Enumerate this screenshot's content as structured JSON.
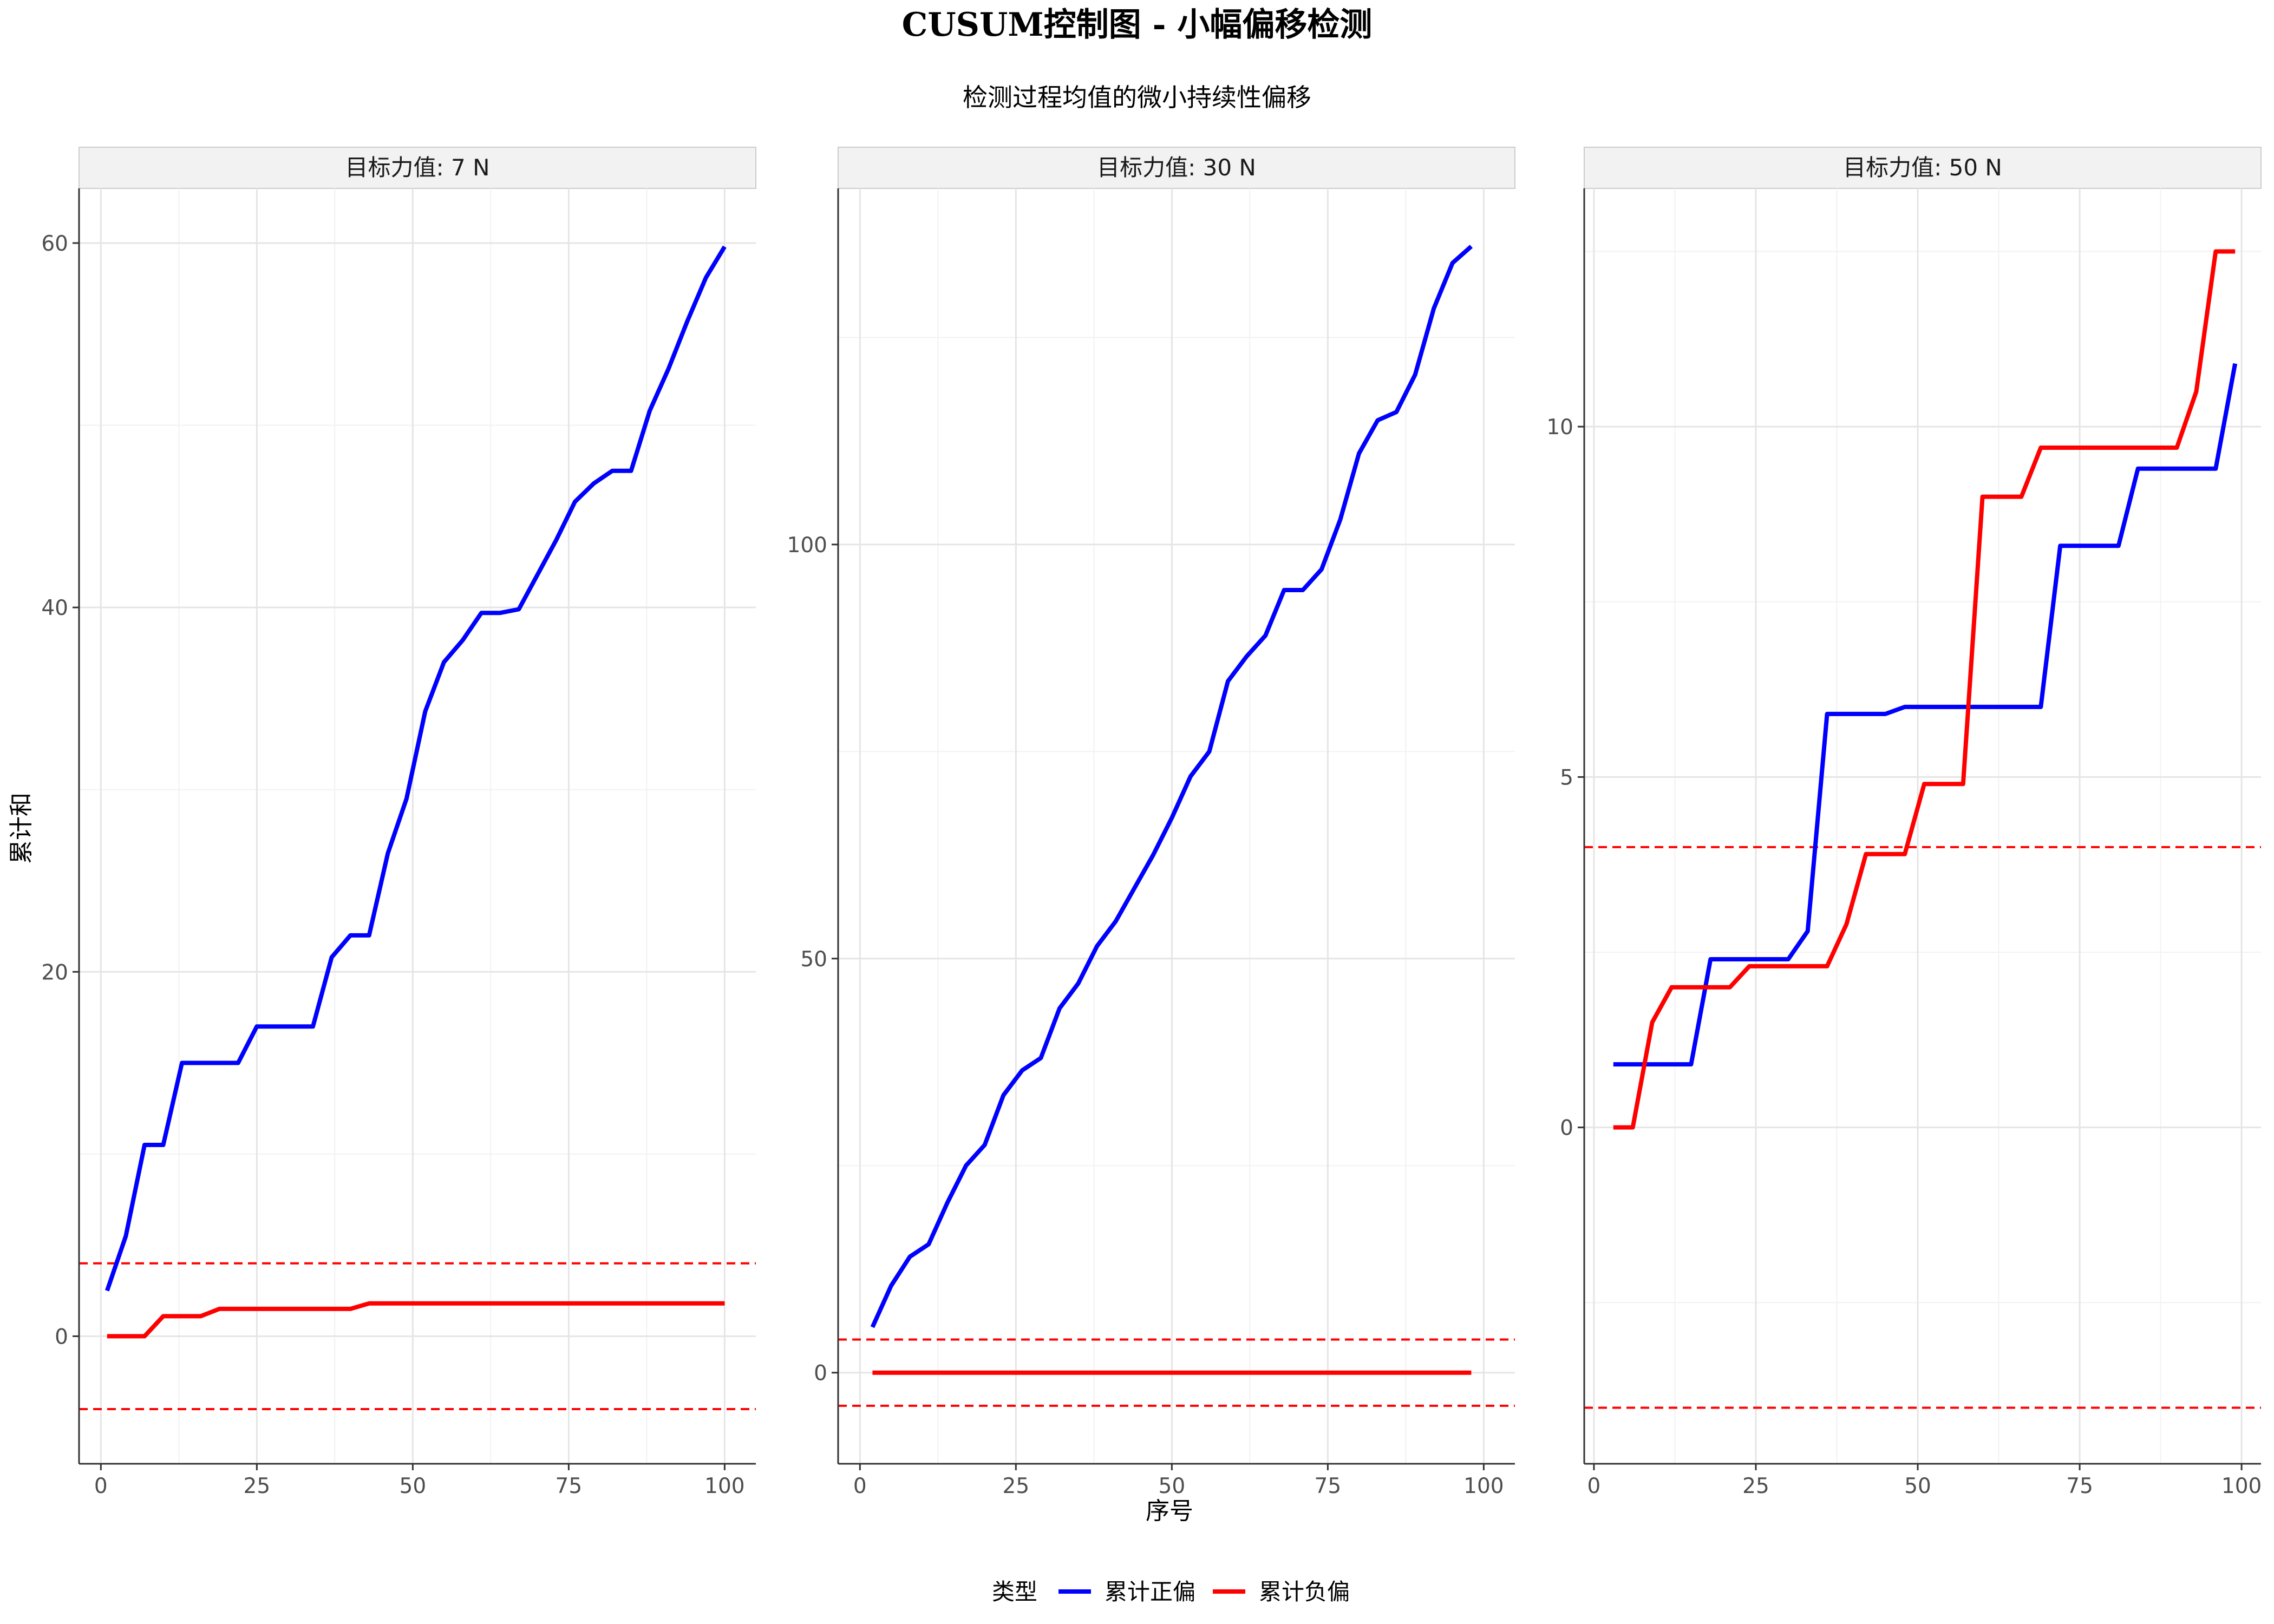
{
  "title": "CUSUM控制图 - 小幅偏移检测",
  "subtitle": "检测过程均值的微小持续性偏移",
  "xlabel": "序号",
  "ylabel": "累计和",
  "legend": {
    "title": "类型",
    "items": [
      {
        "label": "累计正偏",
        "color": "#0000ff"
      },
      {
        "label": "累计负偏",
        "color": "#ff0000"
      }
    ]
  },
  "colors": {
    "positive": "#0000ff",
    "negative": "#ff0000",
    "limit": "#ff0000"
  },
  "chart_data": [
    {
      "type": "line",
      "facet_label": "目标力值: 7 N",
      "xlim": [
        -3.5,
        105
      ],
      "ylim": [
        -7,
        63
      ],
      "xticks": [
        0,
        25,
        50,
        75,
        100
      ],
      "yticks": [
        0,
        20,
        40,
        60
      ],
      "decision_limits": [
        4,
        -4
      ],
      "series": [
        {
          "name": "累计正偏",
          "x": [
            1,
            4,
            7,
            10,
            13,
            16,
            19,
            22,
            25,
            28,
            31,
            34,
            37,
            40,
            43,
            46,
            49,
            52,
            55,
            58,
            61,
            64,
            67,
            70,
            73,
            76,
            79,
            82,
            85,
            88,
            91,
            94,
            97,
            100
          ],
          "y": [
            2.5,
            5.5,
            10.5,
            10.5,
            15,
            15,
            15,
            15,
            17,
            17,
            17,
            17,
            20.8,
            22,
            22,
            26.5,
            29.5,
            34.3,
            37,
            38.2,
            39.7,
            39.7,
            39.9,
            41.8,
            43.7,
            45.8,
            46.8,
            47.5,
            47.5,
            50.8,
            53.1,
            55.7,
            58.1,
            59.8
          ]
        },
        {
          "name": "累计负偏",
          "x": [
            1,
            4,
            7,
            10,
            13,
            16,
            19,
            22,
            25,
            28,
            31,
            34,
            37,
            40,
            43,
            46,
            49,
            100
          ],
          "y": [
            0,
            0,
            0,
            1.1,
            1.1,
            1.1,
            1.5,
            1.5,
            1.5,
            1.5,
            1.5,
            1.5,
            1.5,
            1.5,
            1.8,
            1.8,
            1.8,
            1.8
          ]
        }
      ]
    },
    {
      "type": "line",
      "facet_label": "目标力值: 30 N",
      "xlim": [
        -3.5,
        105
      ],
      "ylim": [
        -11,
        143
      ],
      "xticks": [
        0,
        25,
        50,
        75,
        100
      ],
      "yticks": [
        0,
        50,
        100
      ],
      "decision_limits": [
        4,
        -4
      ],
      "series": [
        {
          "name": "累计正偏",
          "x": [
            2,
            5,
            8,
            11,
            14,
            17,
            20,
            23,
            26,
            29,
            32,
            35,
            38,
            41,
            44,
            47,
            50,
            53,
            56,
            59,
            62,
            65,
            68,
            71,
            74,
            77,
            80,
            83,
            86,
            89,
            92,
            95,
            98
          ],
          "y": [
            5.5,
            10.5,
            14,
            15.5,
            20.5,
            25,
            27.5,
            33.5,
            36.5,
            38,
            44,
            47,
            51.5,
            54.5,
            58.5,
            62.5,
            67,
            72,
            75,
            83.5,
            86.5,
            89,
            94.5,
            94.5,
            97,
            103,
            111,
            115,
            116,
            120.5,
            128.5,
            134,
            136
          ]
        },
        {
          "name": "累计负偏",
          "x": [
            2,
            98
          ],
          "y": [
            0,
            0
          ]
        }
      ]
    },
    {
      "type": "line",
      "facet_label": "目标力值: 50 N",
      "xlim": [
        -1.5,
        103
      ],
      "ylim": [
        -4.8,
        13.4
      ],
      "xticks": [
        0,
        25,
        50,
        75,
        100
      ],
      "yticks": [
        0,
        5,
        10
      ],
      "decision_limits": [
        4,
        -4
      ],
      "series": [
        {
          "name": "累计正偏",
          "x": [
            3,
            6,
            9,
            12,
            15,
            18,
            21,
            24,
            27,
            30,
            33,
            36,
            39,
            42,
            45,
            48,
            51,
            54,
            57,
            60,
            63,
            66,
            69,
            72,
            75,
            78,
            81,
            84,
            87,
            90,
            93,
            96,
            99
          ],
          "y": [
            0.9,
            0.9,
            0.9,
            0.9,
            0.9,
            2.4,
            2.4,
            2.4,
            2.4,
            2.4,
            2.8,
            5.9,
            5.9,
            5.9,
            5.9,
            6,
            6,
            6,
            6,
            6,
            6,
            6,
            6,
            8.3,
            8.3,
            8.3,
            8.3,
            9.4,
            9.4,
            9.4,
            9.4,
            9.4,
            10.9
          ]
        },
        {
          "name": "累计负偏",
          "x": [
            3,
            6,
            9,
            12,
            15,
            18,
            21,
            24,
            27,
            30,
            33,
            36,
            39,
            42,
            45,
            48,
            51,
            54,
            57,
            60,
            63,
            66,
            69,
            72,
            75,
            78,
            81,
            84,
            87,
            90,
            93,
            96,
            99
          ],
          "y": [
            0,
            0,
            1.5,
            2,
            2,
            2,
            2,
            2.3,
            2.3,
            2.3,
            2.3,
            2.3,
            2.9,
            3.9,
            3.9,
            3.9,
            4.9,
            4.9,
            4.9,
            9,
            9,
            9,
            9.7,
            9.7,
            9.7,
            9.7,
            9.7,
            9.7,
            9.7,
            9.7,
            10.5,
            12.5,
            12.5
          ]
        }
      ]
    }
  ]
}
